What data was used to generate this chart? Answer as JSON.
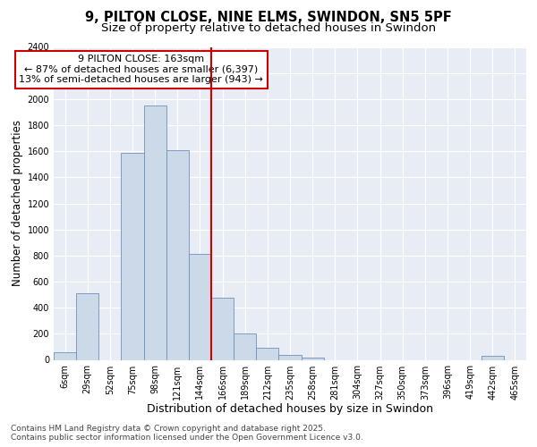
{
  "title": "9, PILTON CLOSE, NINE ELMS, SWINDON, SN5 5PF",
  "subtitle": "Size of property relative to detached houses in Swindon",
  "xlabel": "Distribution of detached houses by size in Swindon",
  "ylabel": "Number of detached properties",
  "categories": [
    "6sqm",
    "29sqm",
    "52sqm",
    "75sqm",
    "98sqm",
    "121sqm",
    "144sqm",
    "166sqm",
    "189sqm",
    "212sqm",
    "235sqm",
    "258sqm",
    "281sqm",
    "304sqm",
    "327sqm",
    "350sqm",
    "373sqm",
    "396sqm",
    "419sqm",
    "442sqm",
    "465sqm"
  ],
  "values": [
    60,
    510,
    0,
    1590,
    1950,
    1610,
    810,
    480,
    200,
    95,
    40,
    20,
    0,
    0,
    0,
    0,
    0,
    0,
    0,
    30,
    0
  ],
  "bar_color": "#ccd9e8",
  "bar_edge_color": "#7090b8",
  "vline_color": "#cc0000",
  "vline_x": 6.5,
  "annotation_title": "9 PILTON CLOSE: 163sqm",
  "annotation_line1": "← 87% of detached houses are smaller (6,397)",
  "annotation_line2": "13% of semi-detached houses are larger (943) →",
  "annotation_box_facecolor": "#ffffff",
  "annotation_box_edgecolor": "#cc0000",
  "ylim": [
    0,
    2400
  ],
  "yticks": [
    0,
    200,
    400,
    600,
    800,
    1000,
    1200,
    1400,
    1600,
    1800,
    2000,
    2200,
    2400
  ],
  "plot_bg_color": "#e8ecf4",
  "fig_bg_color": "#ffffff",
  "footer_line1": "Contains HM Land Registry data © Crown copyright and database right 2025.",
  "footer_line2": "Contains public sector information licensed under the Open Government Licence v3.0.",
  "title_fontsize": 10.5,
  "subtitle_fontsize": 9.5,
  "xlabel_fontsize": 9,
  "ylabel_fontsize": 8.5,
  "tick_fontsize": 7,
  "annot_fontsize": 8,
  "footer_fontsize": 6.5
}
